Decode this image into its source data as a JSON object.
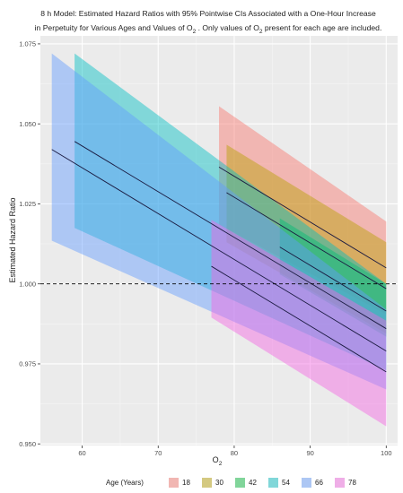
{
  "chart_data": {
    "type": "line",
    "title": {
      "line1": "8 h Model: Estimated Hazard Ratios with 95% Pointwise CIs Associated with a One-Hour Increase",
      "line2_pre": "in Perpetuity for Various Ages and Values of  O",
      "line2_mid": " . Only values of  O",
      "line2_post": "  present for each age are included.",
      "subscript": "2"
    },
    "xlabel": "O",
    "xlabel_sub": "2",
    "ylabel": "Estimated Hazard Ratio",
    "xlim": [
      54.5,
      101.5
    ],
    "ylim": [
      0.9495,
      1.0775
    ],
    "x_ticks": [
      60,
      70,
      80,
      90,
      100
    ],
    "x_tick_labels": [
      "60",
      "70",
      "80",
      "90",
      "100"
    ],
    "y_ticks": [
      0.95,
      0.975,
      1.0,
      1.025,
      1.05,
      1.075
    ],
    "y_tick_labels": [
      "0.950",
      "0.975",
      "1.000",
      "1.025",
      "1.050",
      "1.075"
    ],
    "reference_line": {
      "y": 1.0,
      "style": "dashed"
    },
    "grid": true,
    "legend": {
      "title": "Age (Years)",
      "position": "bottom",
      "entries": [
        "18",
        "30",
        "42",
        "54",
        "66",
        "78"
      ]
    },
    "series": [
      {
        "name": "18",
        "color": "#F8766D",
        "x": [
          78,
          100
        ],
        "estimate": [
          1.0365,
          1.005
        ],
        "lower": [
          1.0185,
          0.9905
        ],
        "upper": [
          1.0555,
          1.0195
        ]
      },
      {
        "name": "30",
        "color": "#B79F00",
        "x": [
          79,
          100
        ],
        "estimate": [
          1.0285,
          0.9985
        ],
        "lower": [
          1.013,
          0.9845
        ],
        "upper": [
          1.0435,
          1.013
        ]
      },
      {
        "name": "42",
        "color": "#00BA38",
        "x": [
          86,
          100
        ],
        "estimate": [
          1.0115,
          0.9915
        ],
        "lower": [
          1.003,
          0.9835
        ],
        "upper": [
          1.0205,
          1.0
        ]
      },
      {
        "name": "54",
        "color": "#00BFC4",
        "x": [
          59,
          100
        ],
        "estimate": [
          1.0445,
          0.986
        ],
        "lower": [
          1.0175,
          0.973
        ],
        "upper": [
          1.072,
          1.0
        ]
      },
      {
        "name": "66",
        "color": "#619CFF",
        "x": [
          56,
          100
        ],
        "estimate": [
          1.042,
          0.979
        ],
        "lower": [
          1.0135,
          0.967
        ],
        "upper": [
          1.072,
          0.992
        ]
      },
      {
        "name": "78",
        "color": "#F564E3",
        "x": [
          77,
          100
        ],
        "estimate": [
          1.0055,
          0.9725
        ],
        "lower": [
          0.9895,
          0.9555
        ],
        "upper": [
          1.02,
          0.9885
        ]
      }
    ]
  }
}
